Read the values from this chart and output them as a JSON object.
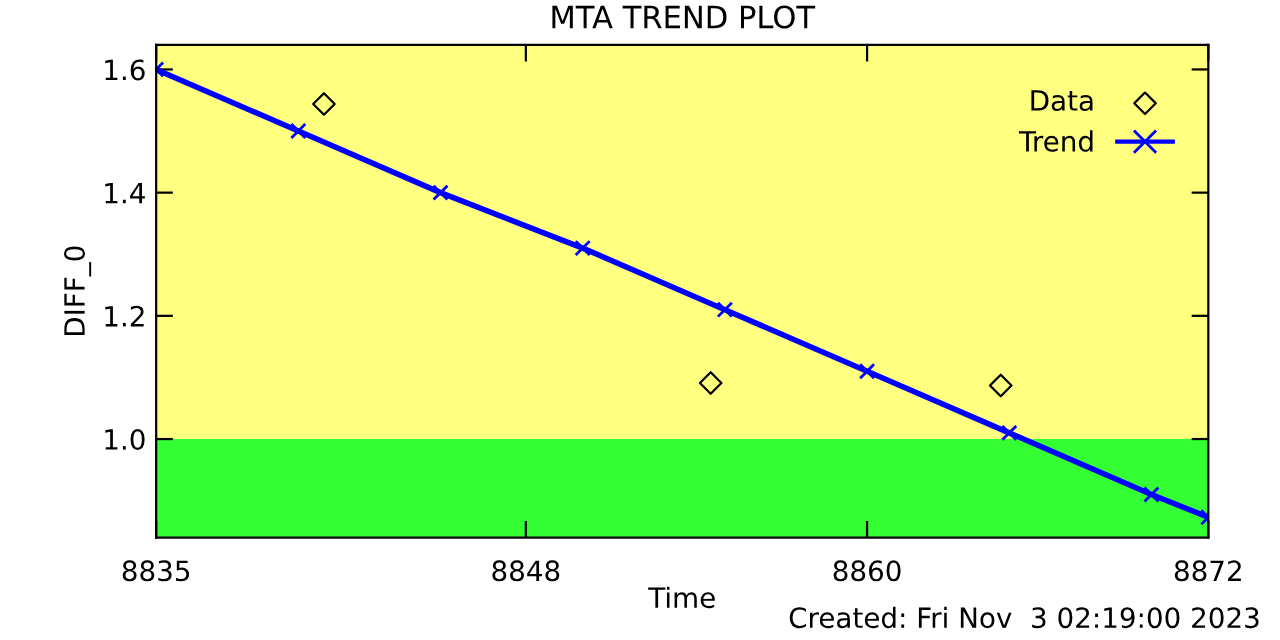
{
  "chart_data": {
    "type": "line",
    "title": "MTA TREND PLOT",
    "xlabel": "Time",
    "ylabel": "DIFF_0",
    "annotations": [
      "Created: Fri Nov  3 02:19:00 2023"
    ],
    "xlim": [
      8835,
      8872
    ],
    "ylim": [
      0.84,
      1.64
    ],
    "xticks": [
      8835,
      8848,
      8860,
      8872
    ],
    "yticks": [
      {
        "value": 1.0,
        "label": "1.0"
      },
      1.2,
      1.4,
      1.6
    ],
    "bands": [
      {
        "axis": "y",
        "from": 0.84,
        "to": 1.0,
        "color": "#33ff33"
      },
      {
        "axis": "y",
        "from": 1.0,
        "to": 1.64,
        "color": "#ffff80"
      }
    ],
    "legend": "top right",
    "grid": false,
    "series": [
      {
        "name": "Data",
        "type": "scatter",
        "marker": "diamond",
        "color": "#000000",
        "x": [
          8840.9,
          8854.5,
          8864.7
        ],
        "values": [
          1.544,
          1.091,
          1.087
        ]
      },
      {
        "name": "Trend",
        "marker": "cross",
        "color": "#0000ff",
        "x": [
          8835,
          8840,
          8845,
          8850,
          8855,
          8860,
          8865,
          8870,
          8872
        ],
        "values": [
          1.6,
          1.5,
          1.4,
          1.31,
          1.21,
          1.11,
          1.01,
          0.91,
          0.873
        ]
      }
    ]
  }
}
